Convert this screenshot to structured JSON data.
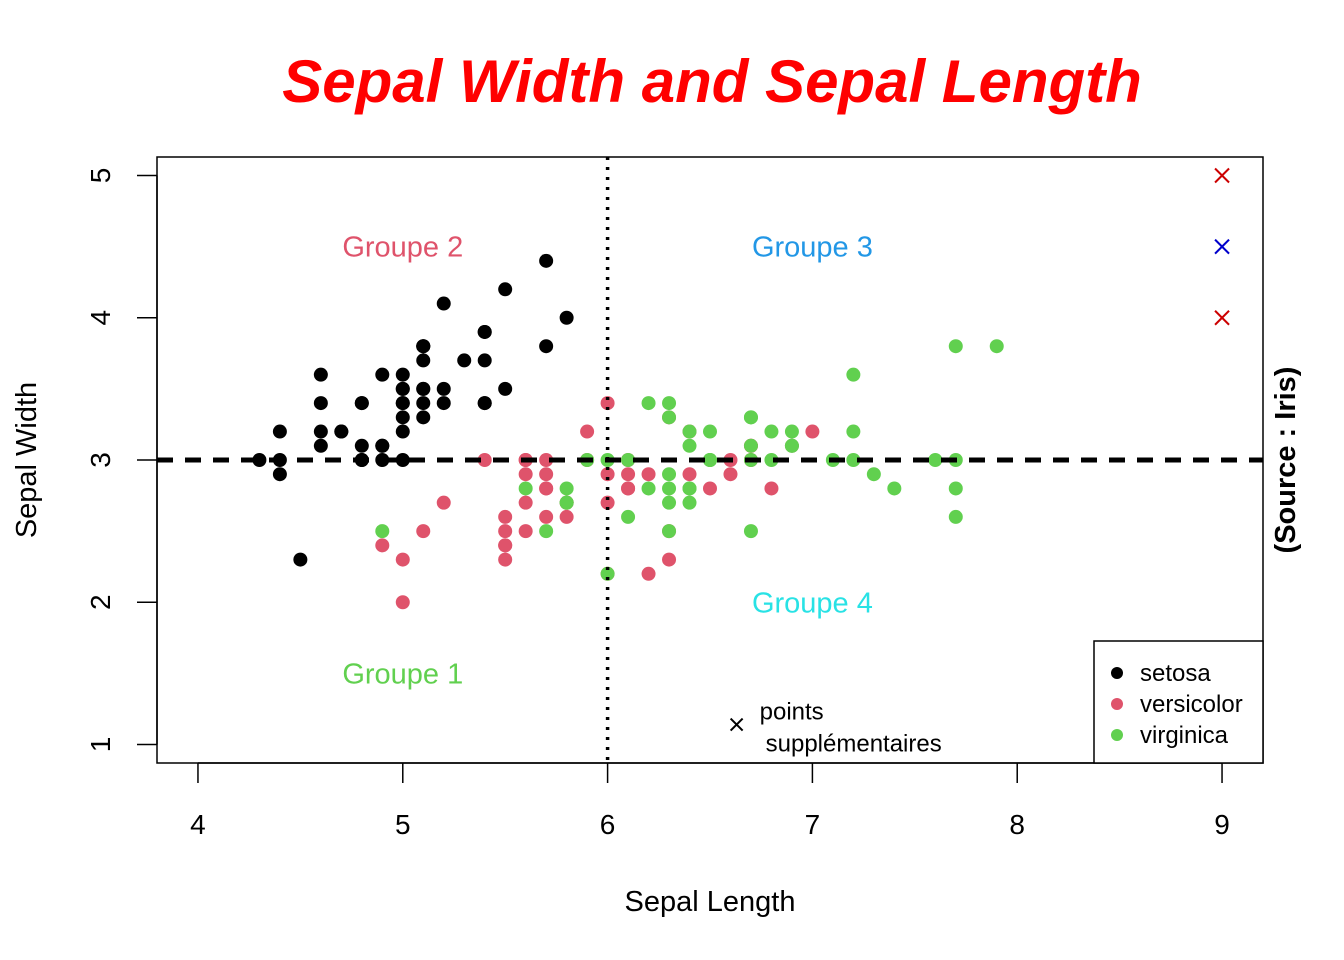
{
  "chart_data": {
    "type": "scatter",
    "title": "Sepal Width and Sepal Length",
    "title_color": "#ff0000",
    "xlabel": "Sepal Length",
    "ylabel": "Sepal Width",
    "source_label": "(Source : Iris)",
    "xlim": [
      3.8,
      9.2
    ],
    "ylim": [
      0.87,
      5.13
    ],
    "xticks": [
      4,
      5,
      6,
      7,
      8,
      9
    ],
    "yticks": [
      1,
      2,
      3,
      4,
      5
    ],
    "grid": false,
    "legend_position": "bottom-right",
    "series": [
      {
        "name": "setosa",
        "color": "#000000",
        "points": [
          [
            5.1,
            3.5
          ],
          [
            4.9,
            3.0
          ],
          [
            4.7,
            3.2
          ],
          [
            4.6,
            3.1
          ],
          [
            5.0,
            3.6
          ],
          [
            5.4,
            3.9
          ],
          [
            4.6,
            3.4
          ],
          [
            5.0,
            3.4
          ],
          [
            4.4,
            2.9
          ],
          [
            4.9,
            3.1
          ],
          [
            5.4,
            3.7
          ],
          [
            4.8,
            3.4
          ],
          [
            4.8,
            3.0
          ],
          [
            4.3,
            3.0
          ],
          [
            5.8,
            4.0
          ],
          [
            5.7,
            4.4
          ],
          [
            5.4,
            3.9
          ],
          [
            5.1,
            3.5
          ],
          [
            5.7,
            3.8
          ],
          [
            5.1,
            3.8
          ],
          [
            5.4,
            3.4
          ],
          [
            5.1,
            3.7
          ],
          [
            4.6,
            3.6
          ],
          [
            5.1,
            3.3
          ],
          [
            4.8,
            3.4
          ],
          [
            5.0,
            3.0
          ],
          [
            5.0,
            3.4
          ],
          [
            5.2,
            3.5
          ],
          [
            5.2,
            3.4
          ],
          [
            4.7,
            3.2
          ],
          [
            4.8,
            3.1
          ],
          [
            5.4,
            3.4
          ],
          [
            5.2,
            4.1
          ],
          [
            5.5,
            4.2
          ],
          [
            4.9,
            3.1
          ],
          [
            5.0,
            3.2
          ],
          [
            5.5,
            3.5
          ],
          [
            4.9,
            3.6
          ],
          [
            4.4,
            3.0
          ],
          [
            5.1,
            3.4
          ],
          [
            5.0,
            3.5
          ],
          [
            4.5,
            2.3
          ],
          [
            4.4,
            3.2
          ],
          [
            5.0,
            3.5
          ],
          [
            5.1,
            3.8
          ],
          [
            4.8,
            3.0
          ],
          [
            5.1,
            3.8
          ],
          [
            4.6,
            3.2
          ],
          [
            5.3,
            3.7
          ],
          [
            5.0,
            3.3
          ]
        ]
      },
      {
        "name": "versicolor",
        "color": "#df536b",
        "points": [
          [
            7.0,
            3.2
          ],
          [
            6.4,
            3.2
          ],
          [
            6.9,
            3.1
          ],
          [
            5.5,
            2.3
          ],
          [
            6.5,
            2.8
          ],
          [
            5.7,
            2.8
          ],
          [
            6.3,
            3.3
          ],
          [
            4.9,
            2.4
          ],
          [
            6.6,
            2.9
          ],
          [
            5.2,
            2.7
          ],
          [
            5.0,
            2.0
          ],
          [
            5.9,
            3.0
          ],
          [
            6.0,
            2.2
          ],
          [
            6.1,
            2.9
          ],
          [
            5.6,
            2.9
          ],
          [
            6.7,
            3.1
          ],
          [
            5.6,
            3.0
          ],
          [
            5.8,
            2.7
          ],
          [
            6.2,
            2.2
          ],
          [
            5.6,
            2.5
          ],
          [
            5.9,
            3.2
          ],
          [
            6.1,
            2.8
          ],
          [
            6.3,
            2.5
          ],
          [
            6.1,
            2.8
          ],
          [
            6.4,
            2.9
          ],
          [
            6.6,
            3.0
          ],
          [
            6.8,
            2.8
          ],
          [
            6.7,
            3.0
          ],
          [
            6.0,
            2.9
          ],
          [
            5.7,
            2.6
          ],
          [
            5.5,
            2.4
          ],
          [
            5.5,
            2.4
          ],
          [
            5.8,
            2.7
          ],
          [
            6.0,
            2.7
          ],
          [
            5.4,
            3.0
          ],
          [
            6.0,
            3.4
          ],
          [
            6.7,
            3.1
          ],
          [
            6.3,
            2.3
          ],
          [
            5.6,
            3.0
          ],
          [
            5.5,
            2.5
          ],
          [
            5.5,
            2.6
          ],
          [
            6.1,
            3.0
          ],
          [
            5.8,
            2.6
          ],
          [
            5.0,
            2.3
          ],
          [
            5.6,
            2.7
          ],
          [
            5.7,
            3.0
          ],
          [
            5.7,
            2.9
          ],
          [
            6.2,
            2.9
          ],
          [
            5.1,
            2.5
          ],
          [
            5.7,
            2.8
          ]
        ]
      },
      {
        "name": "virginica",
        "color": "#61d04f",
        "points": [
          [
            6.3,
            3.3
          ],
          [
            5.8,
            2.7
          ],
          [
            7.1,
            3.0
          ],
          [
            6.3,
            2.9
          ],
          [
            6.5,
            3.0
          ],
          [
            7.6,
            3.0
          ],
          [
            4.9,
            2.5
          ],
          [
            7.3,
            2.9
          ],
          [
            6.7,
            2.5
          ],
          [
            7.2,
            3.6
          ],
          [
            6.5,
            3.2
          ],
          [
            6.4,
            2.7
          ],
          [
            6.8,
            3.0
          ],
          [
            5.7,
            2.5
          ],
          [
            5.8,
            2.8
          ],
          [
            6.4,
            3.2
          ],
          [
            6.5,
            3.0
          ],
          [
            7.7,
            3.8
          ],
          [
            7.7,
            2.6
          ],
          [
            6.0,
            2.2
          ],
          [
            6.9,
            3.2
          ],
          [
            5.6,
            2.8
          ],
          [
            7.7,
            2.8
          ],
          [
            6.3,
            2.7
          ],
          [
            6.7,
            3.3
          ],
          [
            7.2,
            3.2
          ],
          [
            6.2,
            2.8
          ],
          [
            6.1,
            3.0
          ],
          [
            6.4,
            2.8
          ],
          [
            7.2,
            3.0
          ],
          [
            7.4,
            2.8
          ],
          [
            7.9,
            3.8
          ],
          [
            6.4,
            2.8
          ],
          [
            6.3,
            2.8
          ],
          [
            6.1,
            2.6
          ],
          [
            7.7,
            3.0
          ],
          [
            6.3,
            3.4
          ],
          [
            6.4,
            3.1
          ],
          [
            6.0,
            3.0
          ],
          [
            6.9,
            3.1
          ],
          [
            6.7,
            3.1
          ],
          [
            6.9,
            3.1
          ],
          [
            5.8,
            2.7
          ],
          [
            6.8,
            3.2
          ],
          [
            6.7,
            3.3
          ],
          [
            6.7,
            3.0
          ],
          [
            6.3,
            2.5
          ],
          [
            6.5,
            3.0
          ],
          [
            6.2,
            3.4
          ],
          [
            5.9,
            3.0
          ]
        ]
      }
    ],
    "supplementary_points": [
      {
        "x": 9,
        "y": 5,
        "color": "#cc0000"
      },
      {
        "x": 9,
        "y": 4.5,
        "color": "#0000cc"
      },
      {
        "x": 9,
        "y": 4,
        "color": "#cc0000"
      }
    ],
    "reference_lines": [
      {
        "orientation": "horizontal",
        "value": 3,
        "style": "dashed"
      },
      {
        "orientation": "vertical",
        "value": 6,
        "style": "dotted"
      }
    ],
    "group_labels": [
      {
        "text": "Groupe 1",
        "x": 5,
        "y": 1.5,
        "color": "#61d04f"
      },
      {
        "text": "Groupe 2",
        "x": 5,
        "y": 4.5,
        "color": "#df536b"
      },
      {
        "text": "Groupe 3",
        "x": 7,
        "y": 4.5,
        "color": "#2297e6"
      },
      {
        "text": "Groupe 4",
        "x": 7,
        "y": 2,
        "color": "#28e2e5"
      }
    ],
    "annotation": {
      "marker_x": 6.63,
      "marker_y": 1.14,
      "line1": "points",
      "line2": "supplémentaires"
    },
    "legend": [
      "setosa",
      "versicolor",
      "virginica"
    ]
  }
}
